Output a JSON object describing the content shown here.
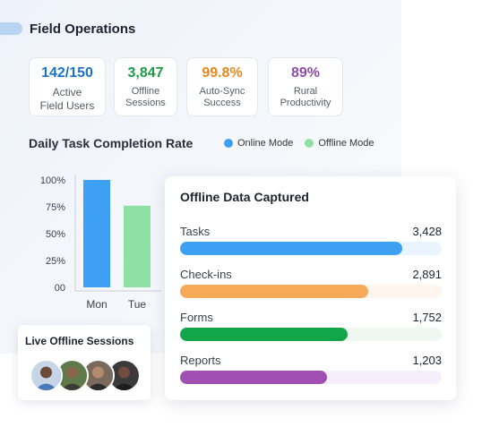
{
  "header": {
    "title": "Field Operations"
  },
  "stats": [
    {
      "value": "142/150",
      "label": "Active\nField Users",
      "color": "#1a73c9"
    },
    {
      "value": "3,847",
      "label": "Offline\nSessions",
      "color": "#1e9a4a"
    },
    {
      "value": "99.8%",
      "label": "Auto-Sync\nSuccess",
      "color": "#e8871e"
    },
    {
      "value": "89%",
      "label": "Rural\nProductivity",
      "color": "#8e4ca8"
    }
  ],
  "chart_data": {
    "type": "bar",
    "title": "Daily Task Completion Rate",
    "categories": [
      "Mon",
      "Tue"
    ],
    "series": [
      {
        "name": "Online Mode",
        "color": "#3ea0f3",
        "values": [
          100,
          null
        ]
      },
      {
        "name": "Offline Mode",
        "color": "#8fe0a3",
        "values": [
          null,
          76
        ]
      }
    ],
    "yticks": [
      "100%",
      "75%",
      "50%",
      "25%",
      "00"
    ],
    "ylim": [
      0,
      100
    ],
    "legend": "top-right",
    "grid": false
  },
  "offline_card": {
    "title": "Offline Data Captured",
    "rows": [
      {
        "label": "Tasks",
        "value": "3,428",
        "fraction": 0.85,
        "color": "#3ea0f3",
        "track": "#eaf4fe"
      },
      {
        "label": "Check-ins",
        "value": "2,891",
        "fraction": 0.72,
        "color": "#f7a95a",
        "track": "#fdf5ee"
      },
      {
        "label": "Forms",
        "value": "1,752",
        "fraction": 0.64,
        "color": "#13a54a",
        "track": "#eef8f1"
      },
      {
        "label": "Reports",
        "value": "1,203",
        "fraction": 0.56,
        "color": "#a04fb2",
        "track": "#f6eefa"
      }
    ]
  },
  "sessions": {
    "title": "Live Offline Sessions",
    "avatars": [
      "avatar-user-1",
      "avatar-user-2",
      "avatar-user-3",
      "avatar-user-4"
    ]
  }
}
